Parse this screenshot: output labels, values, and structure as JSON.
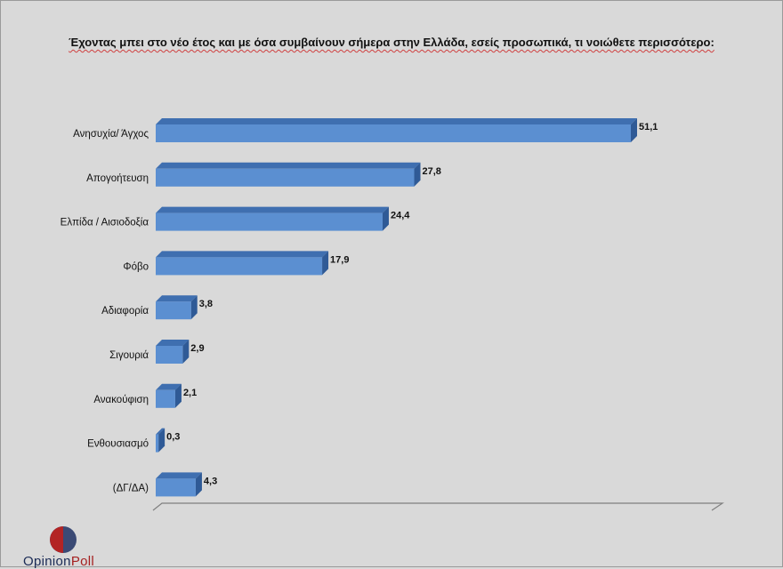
{
  "chart_data": {
    "type": "bar",
    "orientation": "horizontal",
    "title": "Έχοντας μπει στο νέο έτος και με  όσα συμβαίνουν σήμερα στην Ελλάδα, εσείς προσωπικά, τι νοιώθετε περισσότερο:",
    "categories": [
      "Ανησυχία/ Άγχος",
      "Απογοήτευση",
      "Ελπίδα / Αισιοδοξία",
      "Φόβο",
      "Αδιαφορία",
      "Σιγουριά",
      "Ανακούφιση",
      "Ενθουσιασμό",
      "(ΔΓ/ΔΑ)"
    ],
    "values": [
      51.1,
      27.8,
      24.4,
      17.9,
      3.8,
      2.9,
      2.1,
      0.3,
      4.3
    ],
    "value_labels": [
      "51,1",
      "27,8",
      "24,4",
      "17,9",
      "3,8",
      "2,9",
      "2,1",
      "0,3",
      "4,3"
    ],
    "xlim": [
      0,
      51.1
    ],
    "grid": false,
    "legend": "none",
    "bar_color": "#5b8fd1",
    "bar_top_color": "#3f6fb0",
    "bar_end_color": "#2f5a96"
  },
  "logo": {
    "text_prefix": "Opinion",
    "text_suffix": "Poll"
  },
  "colors": {
    "background": "#d9d9d9",
    "logo_red": "#b32424",
    "logo_blue": "#3b4a75"
  }
}
